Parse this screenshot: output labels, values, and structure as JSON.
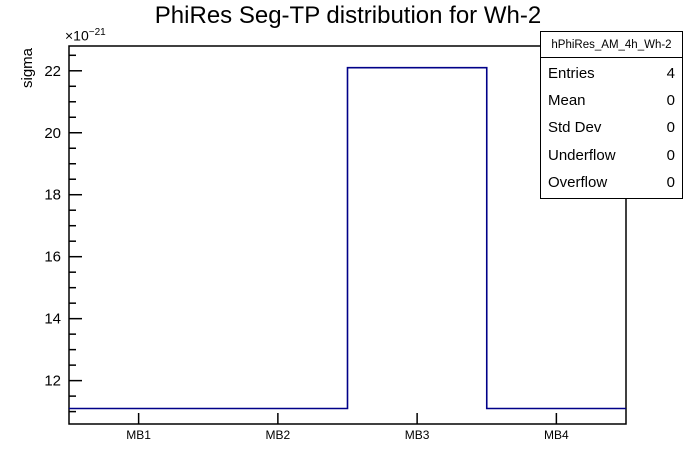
{
  "title": "PhiRes Seg-TP distribution for Wh-2",
  "colors": {
    "histogram_line": "#000088",
    "frame_line": "#000000",
    "background": "#ffffff",
    "text": "#000000"
  },
  "y_axis": {
    "label": "sigma",
    "exponent_base": "×10",
    "exponent_power": "−21"
  },
  "stats_box": {
    "header": "hPhiRes_AM_4h_Wh-2",
    "rows": [
      {
        "label": "Entries",
        "value": "4"
      },
      {
        "label": "Mean",
        "value": "0"
      },
      {
        "label": "Std Dev",
        "value": "0"
      },
      {
        "label": "Underflow",
        "value": "0"
      },
      {
        "label": "Overflow",
        "value": "0"
      }
    ]
  },
  "chart_data": {
    "type": "bar",
    "style": "root-step-histogram",
    "title": "PhiRes Seg-TP distribution for Wh-2",
    "categories": [
      "MB1",
      "MB2",
      "MB3",
      "MB4"
    ],
    "values": [
      11.1,
      11.1,
      22.1,
      11.1
    ],
    "value_scale": "1e-21",
    "xlabel": "",
    "ylabel": "sigma",
    "ylim": [
      10.6,
      22.8
    ],
    "y_major_ticks": [
      12,
      14,
      16,
      18,
      20,
      22
    ],
    "y_minor_step": 0.5,
    "grid": false,
    "legend": false
  }
}
